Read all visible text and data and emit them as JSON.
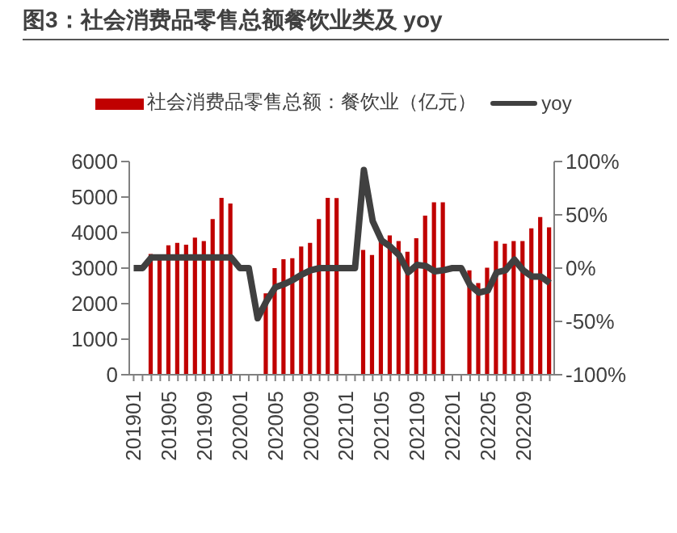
{
  "chart_data": {
    "type": "bar",
    "title": "图3：社会消费品零售总额餐饮业类及 yoy",
    "categories": [
      "201901",
      null,
      null,
      null,
      "201905",
      null,
      null,
      null,
      "201909",
      null,
      null,
      null,
      "202001",
      null,
      null,
      null,
      "202005",
      null,
      null,
      null,
      "202009",
      null,
      null,
      null,
      "202101",
      null,
      null,
      null,
      "202105",
      null,
      null,
      null,
      "202109",
      null,
      null,
      null,
      "202201",
      null,
      null,
      null,
      "202205",
      null,
      null,
      null,
      "202209",
      null,
      null,
      null
    ],
    "series": [
      {
        "name": "社会消费品零售总额：餐饮业（亿元）",
        "color": "#c00000",
        "values": [
          null,
          null,
          3400,
          3230,
          3640,
          3710,
          3660,
          3860,
          3760,
          4380,
          4980,
          4820,
          null,
          null,
          null,
          2290,
          3000,
          3250,
          3280,
          3610,
          3710,
          4380,
          4980,
          4970,
          null,
          null,
          3510,
          3370,
          3740,
          3920,
          3760,
          3460,
          3840,
          4480,
          4850,
          4850,
          null,
          null,
          2940,
          2580,
          3010,
          3760,
          3690,
          3760,
          3760,
          4120,
          4440,
          4150
        ]
      },
      {
        "name": "yoy",
        "type": "line",
        "axis": "y2",
        "color": "#404040",
        "values": [
          0,
          0,
          10,
          10,
          10,
          10,
          10,
          10,
          10,
          10,
          10,
          10,
          0,
          0,
          -47,
          -31,
          -18,
          -15,
          -11,
          -6,
          -2,
          0,
          0,
          0,
          0,
          0,
          92,
          44,
          26,
          20,
          12,
          -4,
          3,
          2,
          -3,
          -2,
          0,
          0,
          -16,
          -23,
          -21,
          -4,
          -2,
          8,
          -2,
          -8,
          -8,
          -14
        ]
      }
    ],
    "ylim": [
      0,
      6000
    ],
    "yticks": [
      0,
      1000,
      2000,
      3000,
      4000,
      5000,
      6000
    ],
    "y2lim": [
      -100,
      100
    ],
    "y2ticks": [
      {
        "value": -100,
        "label": "-100%"
      },
      {
        "value": -50,
        "label": "-50%"
      },
      {
        "value": 0,
        "label": "0%"
      },
      {
        "value": 50,
        "label": "50%"
      },
      {
        "value": 100,
        "label": "100%"
      }
    ],
    "legend": "top",
    "grid": false,
    "marker": "none",
    "line_style": "solid"
  }
}
